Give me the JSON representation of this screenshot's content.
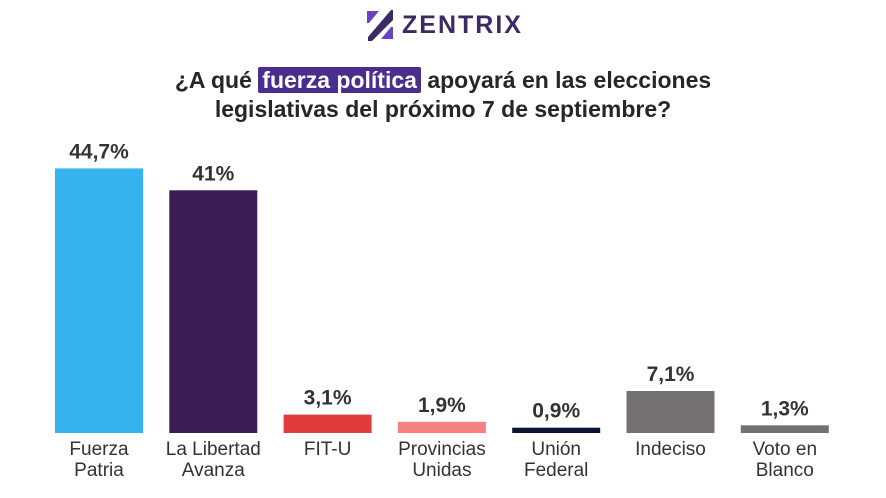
{
  "brand": {
    "name": "ZENTRIX",
    "logo_icon": "zentrix-logo-icon",
    "colors": {
      "primary": "#3b2a63",
      "accent": "#6a42c2"
    }
  },
  "title": {
    "prefix": "¿A qué",
    "highlight": "fuerza política",
    "suffix": "apoyará en las elecciones",
    "line2": "legislativas del próximo 7 de septiembre?",
    "highlight_color": "#4a2d8c"
  },
  "chart_data": {
    "type": "bar",
    "title": "¿A qué fuerza política apoyará en las elecciones legislativas del próximo 7 de septiembre?",
    "xlabel": "",
    "ylabel": "",
    "ylim": [
      0,
      50
    ],
    "grid": false,
    "legend": "none",
    "categories": [
      [
        "Fuerza",
        "Patria"
      ],
      [
        "La Libertad",
        "Avanza"
      ],
      [
        "FIT-U"
      ],
      [
        "Provincias",
        "Unidas"
      ],
      [
        "Unión",
        "Federal"
      ],
      [
        "Indeciso"
      ],
      [
        "Voto en",
        "Blanco"
      ]
    ],
    "values": [
      44.7,
      41,
      3.1,
      1.9,
      0.9,
      7.1,
      1.3
    ],
    "labels": [
      "44,7%",
      "41%",
      "3,1%",
      "1,9%",
      "0,9%",
      "7,1%",
      "1,3%"
    ],
    "colors": [
      "#36b2ee",
      "#3a1d57",
      "#e23b3b",
      "#f58080",
      "#0b1433",
      "#767171",
      "#767171"
    ]
  }
}
